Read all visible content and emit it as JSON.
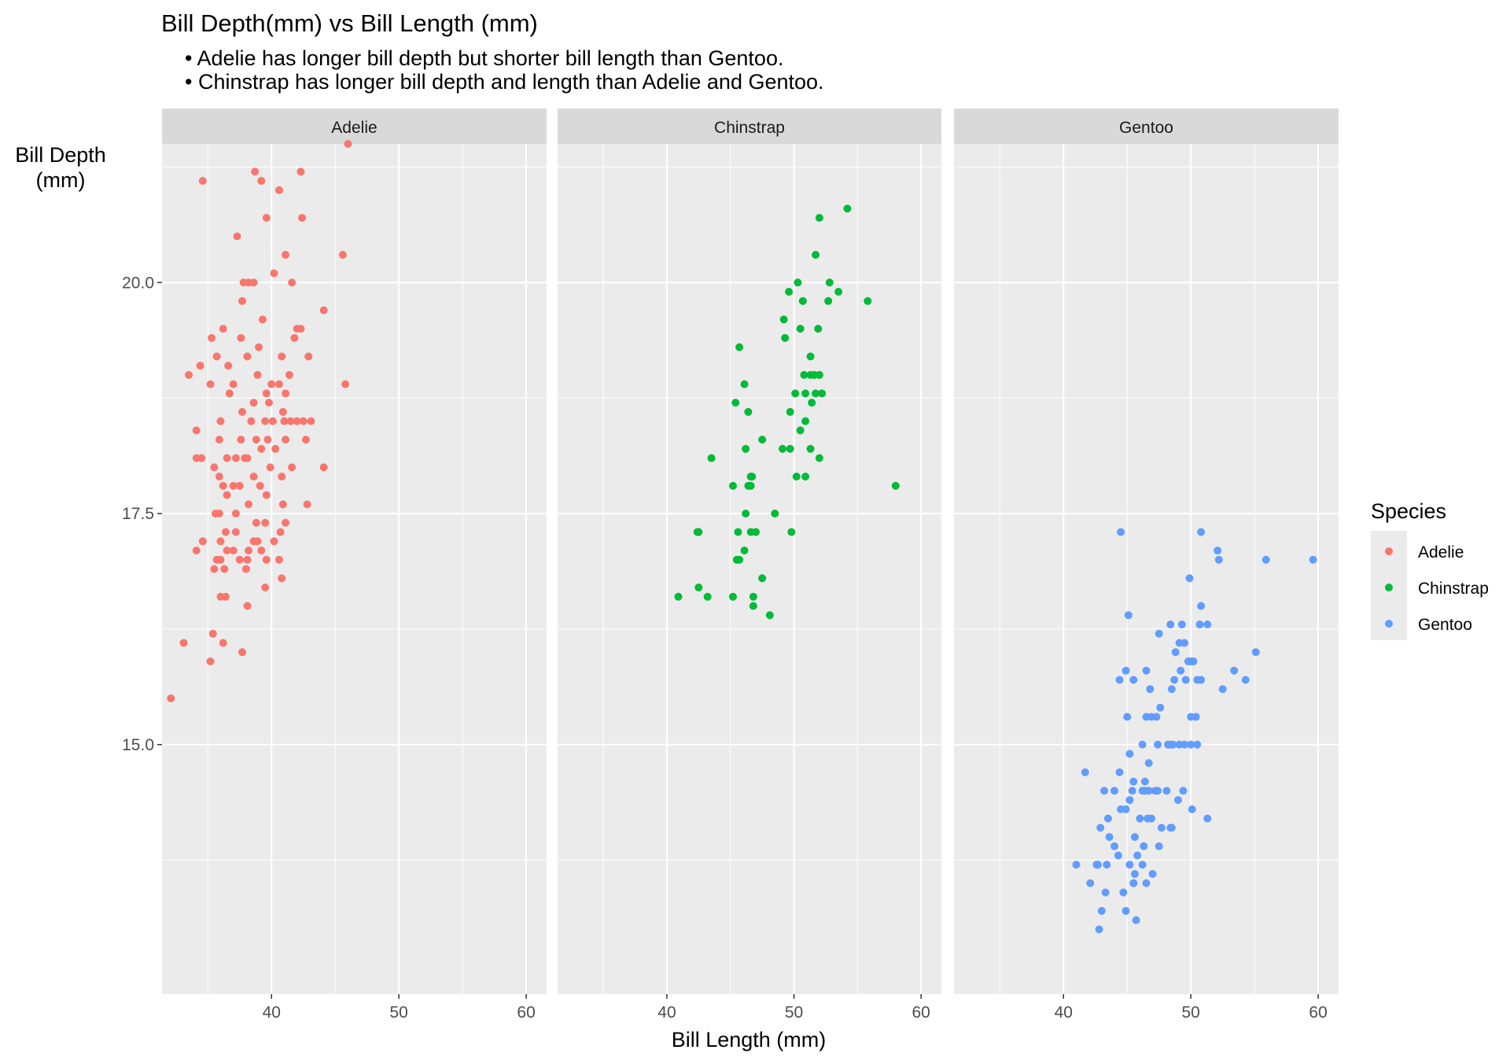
{
  "chart_data": {
    "type": "scatter",
    "title": "Bill Depth(mm) vs Bill Length (mm)",
    "subtitle_lines": [
      "• Adelie has longer bill depth but shorter bill length than Gentoo.",
      "• Chinstrap has longer bill depth and length than Adelie and Gentoo."
    ],
    "xlabel": "Bill Length (mm)",
    "ylabel_lines": [
      "Bill Depth",
      "(mm)"
    ],
    "xlim": [
      31.4,
      61.6
    ],
    "ylim": [
      12.3,
      21.5
    ],
    "x_ticks": [
      40,
      50,
      60
    ],
    "x_tick_labels": [
      "40",
      "50",
      "60"
    ],
    "y_ticks": [
      15.0,
      17.5,
      20.0
    ],
    "y_tick_labels": [
      "15.0",
      "17.5",
      "20.0"
    ],
    "grid": true,
    "facet_by": "species",
    "legend": {
      "title": "Species",
      "position": "right",
      "entries": [
        "Adelie",
        "Chinstrap",
        "Gentoo"
      ]
    },
    "series": [
      {
        "name": "Adelie",
        "color": "#f8766d",
        "points": [
          [
            46.0,
            21.5
          ],
          [
            34.6,
            21.1
          ],
          [
            38.7,
            21.2
          ],
          [
            39.2,
            21.1
          ],
          [
            42.3,
            21.2
          ],
          [
            40.6,
            21.0
          ],
          [
            39.6,
            20.7
          ],
          [
            42.4,
            20.7
          ],
          [
            37.3,
            20.5
          ],
          [
            41.1,
            20.3
          ],
          [
            45.6,
            20.3
          ],
          [
            40.2,
            20.1
          ],
          [
            41.6,
            20.0
          ],
          [
            37.8,
            20.0
          ],
          [
            38.2,
            20.0
          ],
          [
            38.6,
            20.0
          ],
          [
            37.7,
            19.8
          ],
          [
            44.1,
            19.7
          ],
          [
            39.3,
            19.6
          ],
          [
            42.0,
            19.5
          ],
          [
            42.3,
            19.5
          ],
          [
            36.2,
            19.5
          ],
          [
            37.6,
            19.4
          ],
          [
            39.0,
            19.3
          ],
          [
            35.3,
            19.4
          ],
          [
            41.8,
            19.4
          ],
          [
            34.4,
            19.1
          ],
          [
            35.7,
            19.2
          ],
          [
            36.6,
            19.1
          ],
          [
            38.1,
            19.2
          ],
          [
            38.9,
            19.0
          ],
          [
            40.8,
            19.2
          ],
          [
            41.4,
            19.0
          ],
          [
            42.9,
            19.2
          ],
          [
            33.5,
            19.0
          ],
          [
            45.8,
            18.9
          ],
          [
            35.2,
            18.9
          ],
          [
            37.0,
            18.9
          ],
          [
            39.6,
            18.8
          ],
          [
            40.0,
            18.9
          ],
          [
            40.6,
            18.9
          ],
          [
            41.1,
            18.8
          ],
          [
            36.7,
            18.8
          ],
          [
            38.6,
            18.7
          ],
          [
            39.8,
            18.7
          ],
          [
            40.9,
            18.6
          ],
          [
            37.7,
            18.6
          ],
          [
            36.0,
            18.5
          ],
          [
            38.4,
            18.5
          ],
          [
            39.5,
            18.5
          ],
          [
            40.1,
            18.5
          ],
          [
            41.0,
            18.5
          ],
          [
            41.5,
            18.5
          ],
          [
            42.0,
            18.5
          ],
          [
            42.5,
            18.5
          ],
          [
            43.1,
            18.5
          ],
          [
            34.1,
            18.4
          ],
          [
            35.9,
            18.3
          ],
          [
            37.6,
            18.3
          ],
          [
            38.8,
            18.3
          ],
          [
            39.7,
            18.3
          ],
          [
            41.1,
            18.3
          ],
          [
            42.7,
            18.3
          ],
          [
            39.2,
            18.2
          ],
          [
            40.3,
            18.2
          ],
          [
            37.2,
            18.1
          ],
          [
            38.1,
            18.1
          ],
          [
            36.5,
            18.1
          ],
          [
            34.1,
            18.1
          ],
          [
            34.5,
            18.1
          ],
          [
            37.9,
            18.1
          ],
          [
            39.9,
            18.0
          ],
          [
            41.6,
            18.0
          ],
          [
            44.1,
            18.0
          ],
          [
            35.5,
            18.0
          ],
          [
            38.6,
            17.9
          ],
          [
            40.8,
            17.9
          ],
          [
            35.9,
            17.9
          ],
          [
            36.2,
            17.8
          ],
          [
            37.0,
            17.8
          ],
          [
            37.5,
            17.8
          ],
          [
            39.1,
            17.8
          ],
          [
            39.6,
            17.7
          ],
          [
            36.5,
            17.7
          ],
          [
            38.2,
            17.6
          ],
          [
            40.9,
            17.6
          ],
          [
            42.8,
            17.6
          ],
          [
            35.6,
            17.5
          ],
          [
            35.9,
            17.5
          ],
          [
            37.2,
            17.5
          ],
          [
            38.8,
            17.4
          ],
          [
            39.5,
            17.4
          ],
          [
            41.1,
            17.4
          ],
          [
            40.7,
            17.3
          ],
          [
            37.2,
            17.3
          ],
          [
            36.4,
            17.3
          ],
          [
            34.6,
            17.2
          ],
          [
            36.0,
            17.2
          ],
          [
            38.6,
            17.2
          ],
          [
            38.9,
            17.2
          ],
          [
            40.2,
            17.2
          ],
          [
            34.1,
            17.1
          ],
          [
            36.5,
            17.1
          ],
          [
            37.0,
            17.1
          ],
          [
            38.2,
            17.1
          ],
          [
            39.2,
            17.1
          ],
          [
            35.7,
            17.0
          ],
          [
            36.0,
            17.0
          ],
          [
            37.5,
            17.0
          ],
          [
            38.1,
            17.0
          ],
          [
            39.6,
            17.0
          ],
          [
            40.6,
            17.0
          ],
          [
            35.5,
            16.9
          ],
          [
            36.3,
            16.9
          ],
          [
            38.0,
            16.9
          ],
          [
            40.8,
            16.8
          ],
          [
            39.5,
            16.7
          ],
          [
            36.0,
            16.6
          ],
          [
            36.4,
            16.6
          ],
          [
            38.1,
            16.5
          ],
          [
            35.4,
            16.2
          ],
          [
            33.1,
            16.1
          ],
          [
            36.2,
            16.1
          ],
          [
            37.7,
            16.0
          ],
          [
            35.2,
            15.9
          ],
          [
            32.1,
            15.5
          ]
        ]
      },
      {
        "name": "Chinstrap",
        "color": "#00ba38",
        "points": [
          [
            54.2,
            20.8
          ],
          [
            52.0,
            20.7
          ],
          [
            51.7,
            20.3
          ],
          [
            50.3,
            20.0
          ],
          [
            52.8,
            20.0
          ],
          [
            49.6,
            19.9
          ],
          [
            53.5,
            19.9
          ],
          [
            50.7,
            19.8
          ],
          [
            52.7,
            19.8
          ],
          [
            55.8,
            19.8
          ],
          [
            49.2,
            19.6
          ],
          [
            51.9,
            19.5
          ],
          [
            49.3,
            19.4
          ],
          [
            50.5,
            19.5
          ],
          [
            45.7,
            19.3
          ],
          [
            51.3,
            19.2
          ],
          [
            51.3,
            19.0
          ],
          [
            50.8,
            19.0
          ],
          [
            51.6,
            19.0
          ],
          [
            52.0,
            19.0
          ],
          [
            46.1,
            18.9
          ],
          [
            50.1,
            18.8
          ],
          [
            50.9,
            18.8
          ],
          [
            51.7,
            18.8
          ],
          [
            52.2,
            18.8
          ],
          [
            45.4,
            18.7
          ],
          [
            51.4,
            18.7
          ],
          [
            46.4,
            18.6
          ],
          [
            49.7,
            18.6
          ],
          [
            50.9,
            18.5
          ],
          [
            50.5,
            18.4
          ],
          [
            47.5,
            18.3
          ],
          [
            46.2,
            18.2
          ],
          [
            49.1,
            18.2
          ],
          [
            49.7,
            18.2
          ],
          [
            51.3,
            18.2
          ],
          [
            43.5,
            18.1
          ],
          [
            52.0,
            18.1
          ],
          [
            50.2,
            17.9
          ],
          [
            50.9,
            17.9
          ],
          [
            46.6,
            17.9
          ],
          [
            46.7,
            17.9
          ],
          [
            45.2,
            17.8
          ],
          [
            46.4,
            17.8
          ],
          [
            46.6,
            17.8
          ],
          [
            58.0,
            17.8
          ],
          [
            46.2,
            17.5
          ],
          [
            48.5,
            17.5
          ],
          [
            42.4,
            17.3
          ],
          [
            42.5,
            17.3
          ],
          [
            45.6,
            17.3
          ],
          [
            46.6,
            17.3
          ],
          [
            47.0,
            17.3
          ],
          [
            49.8,
            17.3
          ],
          [
            46.1,
            17.1
          ],
          [
            45.5,
            17.0
          ],
          [
            45.7,
            17.0
          ],
          [
            47.5,
            16.8
          ],
          [
            42.5,
            16.7
          ],
          [
            40.9,
            16.6
          ],
          [
            43.2,
            16.6
          ],
          [
            45.2,
            16.6
          ],
          [
            46.8,
            16.6
          ],
          [
            46.8,
            16.5
          ],
          [
            48.1,
            16.4
          ]
        ]
      },
      {
        "name": "Gentoo",
        "color": "#619cff",
        "points": [
          [
            44.5,
            17.3
          ],
          [
            50.8,
            17.3
          ],
          [
            52.1,
            17.1
          ],
          [
            52.2,
            17.0
          ],
          [
            55.9,
            17.0
          ],
          [
            59.6,
            17.0
          ],
          [
            49.9,
            16.8
          ],
          [
            50.8,
            16.5
          ],
          [
            45.1,
            16.4
          ],
          [
            50.7,
            16.3
          ],
          [
            51.3,
            16.3
          ],
          [
            48.4,
            16.3
          ],
          [
            49.3,
            16.3
          ],
          [
            47.5,
            16.2
          ],
          [
            49.1,
            16.1
          ],
          [
            49.5,
            16.1
          ],
          [
            55.1,
            16.0
          ],
          [
            48.8,
            16.0
          ],
          [
            49.8,
            15.9
          ],
          [
            50.2,
            15.9
          ],
          [
            50.0,
            15.9
          ],
          [
            49.2,
            15.8
          ],
          [
            44.9,
            15.8
          ],
          [
            46.5,
            15.8
          ],
          [
            53.4,
            15.8
          ],
          [
            48.7,
            15.7
          ],
          [
            49.6,
            15.7
          ],
          [
            50.5,
            15.7
          ],
          [
            50.8,
            15.7
          ],
          [
            54.3,
            15.7
          ],
          [
            44.4,
            15.7
          ],
          [
            45.5,
            15.7
          ],
          [
            48.5,
            15.6
          ],
          [
            52.5,
            15.6
          ],
          [
            46.8,
            15.6
          ],
          [
            47.6,
            15.4
          ],
          [
            45.0,
            15.3
          ],
          [
            46.5,
            15.3
          ],
          [
            46.9,
            15.3
          ],
          [
            50.0,
            15.3
          ],
          [
            50.4,
            15.3
          ],
          [
            47.3,
            15.3
          ],
          [
            49.1,
            15.0
          ],
          [
            48.2,
            15.0
          ],
          [
            48.6,
            15.0
          ],
          [
            46.2,
            15.0
          ],
          [
            47.4,
            15.0
          ],
          [
            48.4,
            15.0
          ],
          [
            49.5,
            15.0
          ],
          [
            50.0,
            15.0
          ],
          [
            50.5,
            15.0
          ],
          [
            45.2,
            14.9
          ],
          [
            46.7,
            14.8
          ],
          [
            41.7,
            14.7
          ],
          [
            44.4,
            14.7
          ],
          [
            45.5,
            14.6
          ],
          [
            46.4,
            14.6
          ],
          [
            46.2,
            14.5
          ],
          [
            47.2,
            14.5
          ],
          [
            48.1,
            14.5
          ],
          [
            45.2,
            14.4
          ],
          [
            43.2,
            14.5
          ],
          [
            44.0,
            14.5
          ],
          [
            45.4,
            14.5
          ],
          [
            46.4,
            14.5
          ],
          [
            46.7,
            14.5
          ],
          [
            47.4,
            14.5
          ],
          [
            49.4,
            14.5
          ],
          [
            44.9,
            14.3
          ],
          [
            46.0,
            14.2
          ],
          [
            49.0,
            14.4
          ],
          [
            43.5,
            14.2
          ],
          [
            46.9,
            14.2
          ],
          [
            47.7,
            14.1
          ],
          [
            50.1,
            14.3
          ],
          [
            44.5,
            14.3
          ],
          [
            46.6,
            14.2
          ],
          [
            43.6,
            14.0
          ],
          [
            51.3,
            14.2
          ],
          [
            45.6,
            14.0
          ],
          [
            48.4,
            14.1
          ],
          [
            42.9,
            14.1
          ],
          [
            48.5,
            14.1
          ],
          [
            46.3,
            13.9
          ],
          [
            44.0,
            13.9
          ],
          [
            45.8,
            13.8
          ],
          [
            47.5,
            13.9
          ],
          [
            46.2,
            13.7
          ],
          [
            43.4,
            13.7
          ],
          [
            45.2,
            13.7
          ],
          [
            45.6,
            13.6
          ],
          [
            47.0,
            13.6
          ],
          [
            41.0,
            13.7
          ],
          [
            42.6,
            13.7
          ],
          [
            44.3,
            13.8
          ],
          [
            43.3,
            13.4
          ],
          [
            45.5,
            13.5
          ],
          [
            45.5,
            13.5
          ],
          [
            42.1,
            13.5
          ],
          [
            42.7,
            13.7
          ],
          [
            46.5,
            13.5
          ],
          [
            44.7,
            13.4
          ],
          [
            43.0,
            13.2
          ],
          [
            44.9,
            13.2
          ],
          [
            45.7,
            13.1
          ],
          [
            42.8,
            13.0
          ]
        ]
      }
    ]
  }
}
